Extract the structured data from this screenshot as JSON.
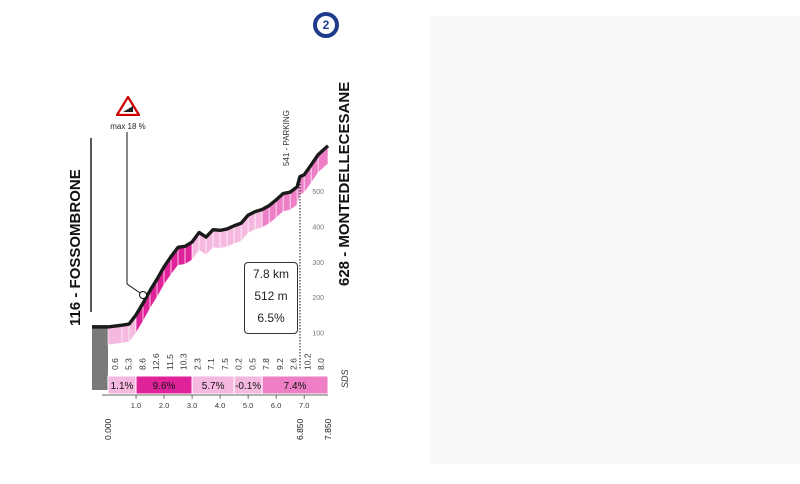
{
  "chart_data": {
    "type": "area",
    "title": "",
    "xlabel": "",
    "ylabel": "",
    "xlim": [
      0,
      7.85
    ],
    "ylim": [
      0,
      650
    ],
    "y_ticks": [
      100,
      200,
      300,
      400,
      500
    ],
    "x_ticks": [
      "1.0",
      "2.0",
      "3.0",
      "4.0",
      "5.0",
      "6.0",
      "7.0"
    ],
    "start_km_label": "0.000",
    "parking_km_label": "6.850",
    "end_km_label": "7.850",
    "start": {
      "name": "116 - FOSSOMBRONE",
      "altitude": 116
    },
    "finish": {
      "name": "628 - MONTEDELLECESANE",
      "altitude": 628
    },
    "parking_label": "541 - PARKING",
    "max_grade_label": "max 18 %",
    "segment_gradients": [
      "0.6",
      "5.3",
      "8.6",
      "12.6",
      "11.5",
      "10.3",
      "2.3",
      "7.1",
      "7.5",
      "0.2",
      "0.5",
      "7.8",
      "9.2",
      "2.6",
      "10.2",
      "8.0"
    ],
    "road_code": "SDS",
    "sections": [
      {
        "label": "1.1%",
        "from": 0.0,
        "to": 1.0,
        "tone": "light"
      },
      {
        "label": "9.6%",
        "from": 1.0,
        "to": 3.0,
        "tone": "dark"
      },
      {
        "label": "5.7%",
        "from": 3.0,
        "to": 4.5,
        "tone": "light"
      },
      {
        "label": "-0.1%",
        "from": 4.5,
        "to": 5.5,
        "tone": "light"
      },
      {
        "label": "7.4%",
        "from": 5.5,
        "to": 7.85,
        "tone": "mid"
      }
    ],
    "profile": {
      "x": [
        0.0,
        0.5,
        0.75,
        1.0,
        1.25,
        1.5,
        1.75,
        2.0,
        2.25,
        2.5,
        2.75,
        3.0,
        3.25,
        3.5,
        3.75,
        4.0,
        4.25,
        4.5,
        4.75,
        5.0,
        5.25,
        5.5,
        5.75,
        6.0,
        6.25,
        6.5,
        6.75,
        6.85,
        7.0,
        7.25,
        7.5,
        7.85
      ],
      "y": [
        116,
        121,
        124,
        150,
        183,
        219,
        251,
        286,
        315,
        341,
        344,
        356,
        383,
        370,
        391,
        389,
        393,
        402,
        409,
        432,
        442,
        448,
        459,
        475,
        493,
        497,
        512,
        541,
        546,
        574,
        603,
        628
      ]
    },
    "summary": {
      "length": "7.8 km",
      "gain": "512 m",
      "average": "6.5%"
    },
    "climb_number": "2",
    "colors": {
      "light": "#f5b8de",
      "mid": "#ee7fc6",
      "dark": "#e0239a",
      "outline": "#1a1a1a",
      "grid": "#8a8a8a",
      "start_block": "#7a7a7a"
    }
  }
}
